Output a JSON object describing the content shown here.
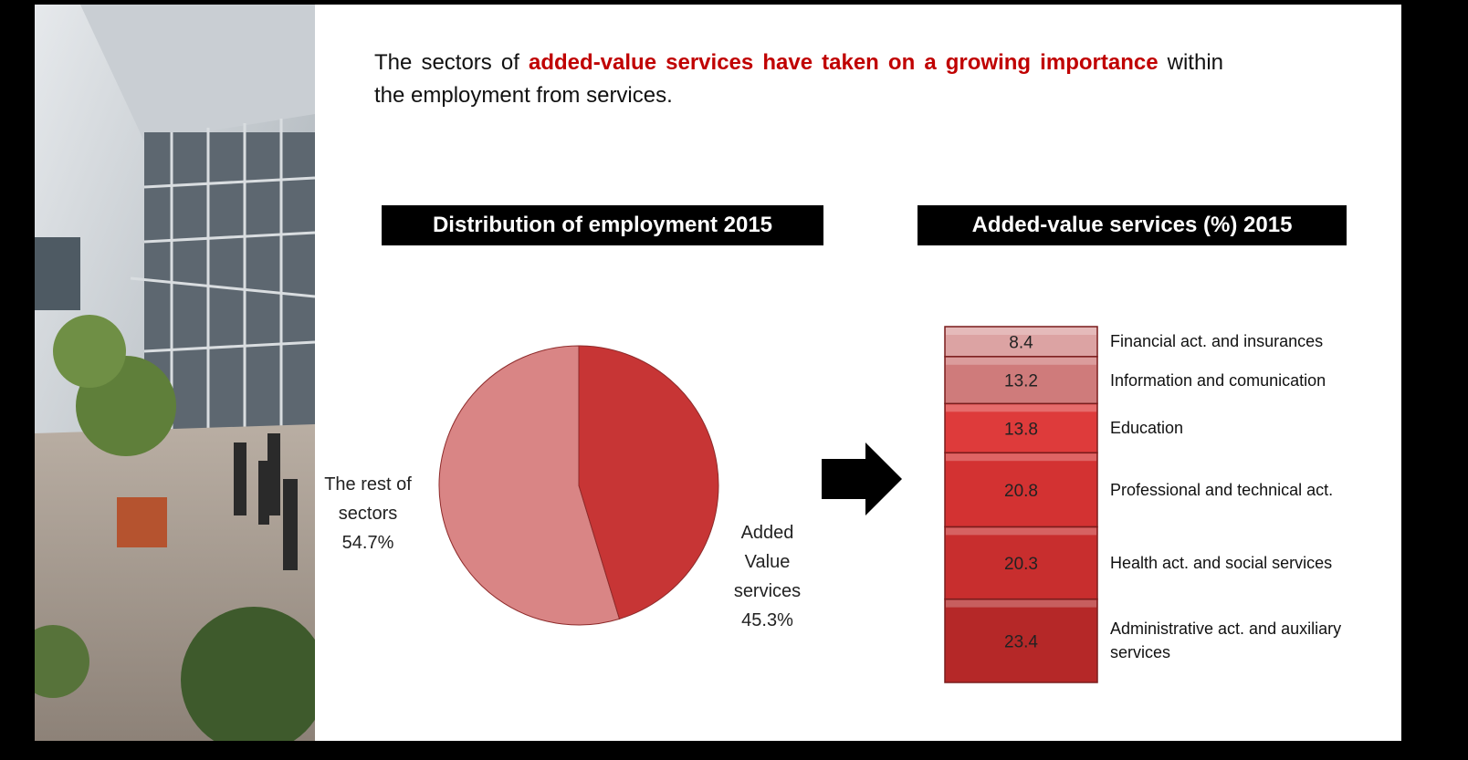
{
  "headline": [
    "The sectors of",
    "added-value services have taken on a growing importance",
    "within the employment from services."
  ],
  "chart_data": [
    {
      "type": "pie",
      "title": "Distribution of employment 2015",
      "categories": [
        "The rest of sectors",
        "Added Value services"
      ],
      "values": [
        54.7,
        45.3
      ],
      "value_labels": [
        "54.7%",
        "45.3%"
      ],
      "colors": [
        "#d98585",
        "#c73535"
      ]
    },
    {
      "type": "stacked-bar",
      "title": "Added-value services (%) 2015",
      "categories": [
        null
      ],
      "series": [
        {
          "name": "Administrative act. and auxiliary services",
          "color": "#b52828",
          "values": [
            23.4
          ]
        },
        {
          "name": "Health act. and social services",
          "color": "#c82e2e",
          "values": [
            20.3
          ]
        },
        {
          "name": "Professional and technical act.",
          "color": "#d33232",
          "values": [
            20.8
          ]
        },
        {
          "name": "Education",
          "color": "#de3b3b",
          "values": [
            13.8
          ]
        },
        {
          "name": "Information and comunication",
          "color": "#cf7b7b",
          "values": [
            13.2
          ]
        },
        {
          "name": "Financial act. and insurances",
          "color": "#dca3a3",
          "values": [
            8.4
          ]
        }
      ]
    }
  ]
}
